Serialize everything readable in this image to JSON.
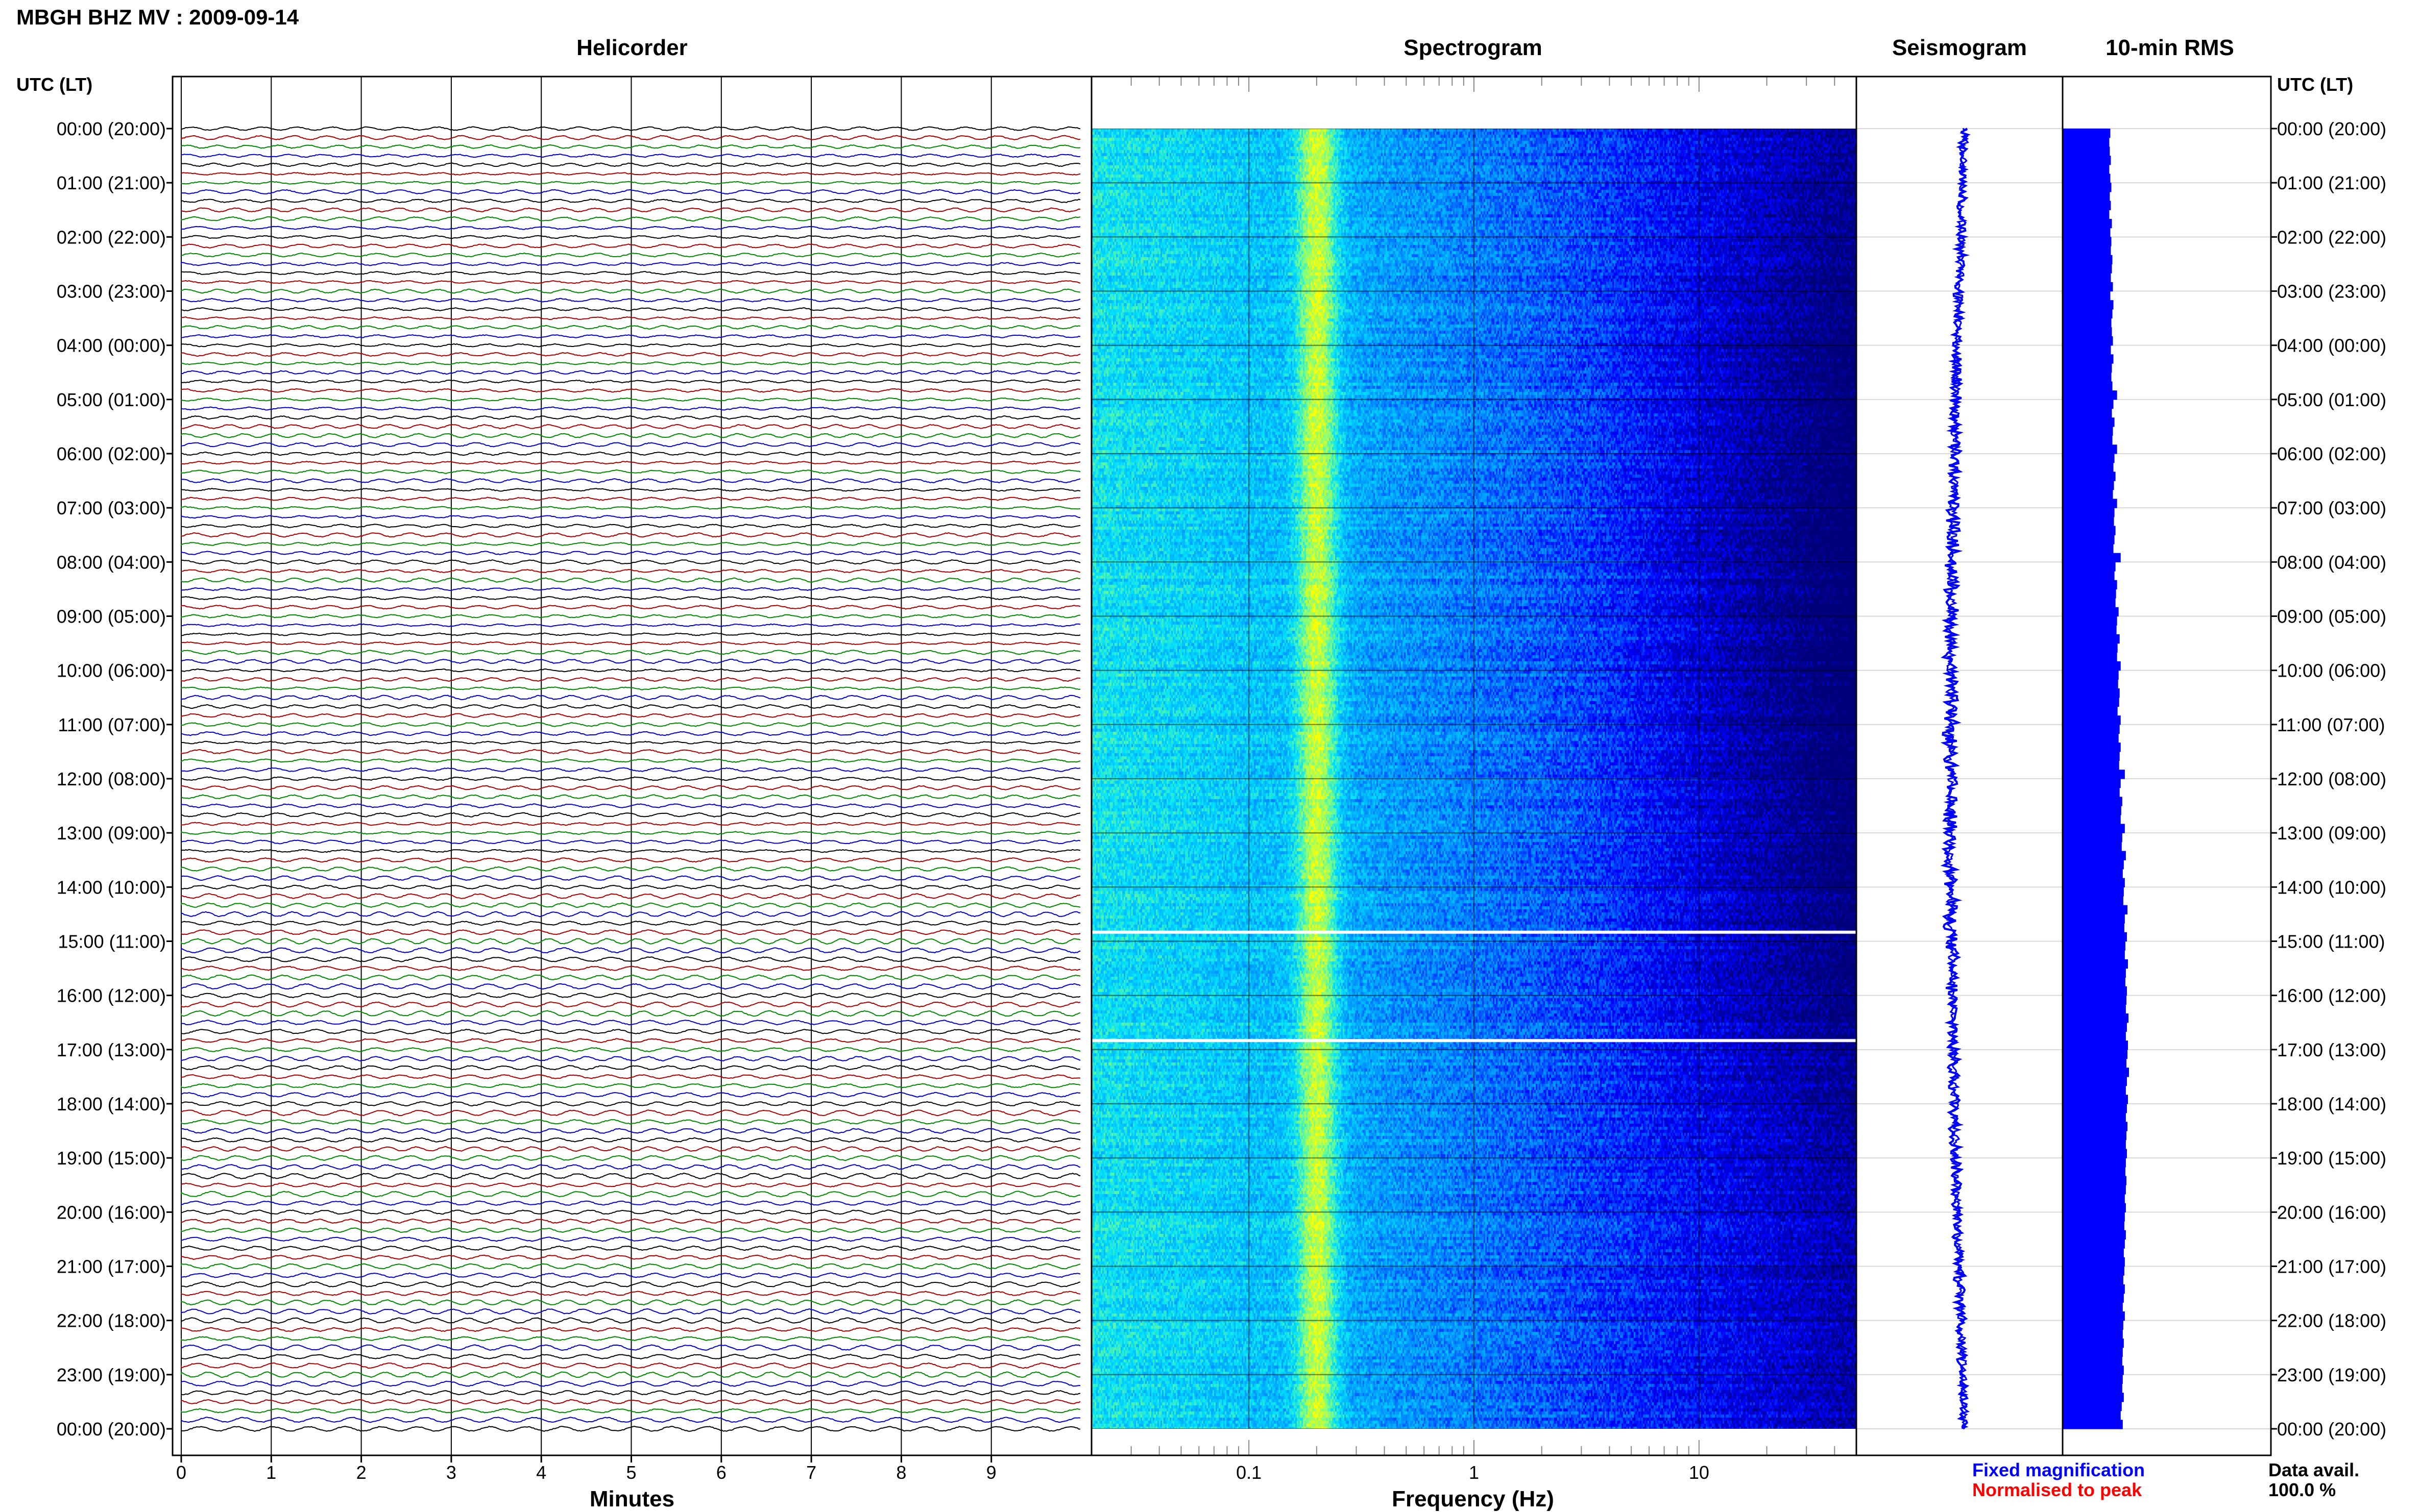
{
  "page": {
    "title": "MBGH BHZ MV : 2009-09-14",
    "utc_label_left": "UTC (LT)",
    "utc_label_right": "UTC (LT)",
    "data_avail_label": "Data avail.",
    "data_avail_value": "100.0 %"
  },
  "colors": {
    "trace_cycle": [
      "#000000",
      "#aa0000",
      "#008800",
      "#0000cc"
    ],
    "seismogram": "#0000ff",
    "rms": "#0000ff",
    "fixed_magnification": "#0000ff",
    "normalised_to_peak": "#ff0000",
    "spectrogram_palette": [
      "#00007a",
      "#0000ff",
      "#0088ff",
      "#00e0ff",
      "#80ff80",
      "#ffff00"
    ]
  },
  "time_axis": {
    "labels": [
      "00:00 (20:00)",
      "01:00 (21:00)",
      "02:00 (22:00)",
      "03:00 (23:00)",
      "04:00 (00:00)",
      "05:00 (01:00)",
      "06:00 (02:00)",
      "07:00 (03:00)",
      "08:00 (04:00)",
      "09:00 (05:00)",
      "10:00 (06:00)",
      "11:00 (07:00)",
      "12:00 (08:00)",
      "13:00 (09:00)",
      "14:00 (10:00)",
      "15:00 (11:00)",
      "16:00 (12:00)",
      "17:00 (13:00)",
      "18:00 (14:00)",
      "19:00 (15:00)",
      "20:00 (16:00)",
      "21:00 (17:00)",
      "22:00 (18:00)",
      "23:00 (19:00)",
      "00:00 (20:00)"
    ]
  },
  "legend": {
    "fixed_magnification": "Fixed magnification",
    "normalised_to_peak": "Normalised to peak"
  },
  "chart_data": [
    {
      "type": "line",
      "title": "Helicorder",
      "xlabel": "Minutes",
      "ylabel": "",
      "x_ticks": [
        "0",
        "1",
        "2",
        "3",
        "4",
        "5",
        "6",
        "7",
        "8",
        "9"
      ],
      "xlim": [
        0,
        10
      ],
      "traces_per_day": 144,
      "minutes_per_trace": 10
    },
    {
      "type": "heatmap",
      "title": "Spectrogram",
      "xlabel": "Frequency (Hz)",
      "x_scale": "log",
      "xlim": [
        0.02,
        50
      ],
      "x_tick_labels": [
        {
          "value": 0.1,
          "label": "0.1"
        },
        {
          "value": 1,
          "label": "1"
        },
        {
          "value": 10,
          "label": "10"
        }
      ],
      "peak_frequency_hz": 0.2,
      "gaps_utc": [
        "14:50",
        "16:50"
      ]
    },
    {
      "type": "line",
      "title": "Seismogram",
      "xlabel": "",
      "ylabel": ""
    },
    {
      "type": "bar",
      "title": "10-min RMS",
      "xlabel": "",
      "ylabel": "",
      "orientation": "horizontal",
      "values": [
        0.92,
        0.9,
        0.91,
        0.93,
        0.9,
        0.92,
        0.94,
        0.91,
        0.93,
        0.9,
        0.95,
        0.92,
        0.94,
        0.93,
        0.96,
        0.95,
        0.93,
        0.97,
        0.92,
        0.98,
        0.96,
        0.94,
        0.95,
        0.97,
        0.93,
        0.98,
        0.95,
        0.94,
        0.96,
        1.05,
        0.98,
        0.95,
        1.0,
        0.97,
        0.96,
        1.05,
        1.0,
        0.98,
        1.02,
        0.99,
        0.97,
        1.05,
        1.0,
        0.99,
        1.02,
        1.0,
        0.98,
        1.12,
        1.02,
        1.0,
        1.05,
        1.03,
        1.02,
        1.08,
        1.05,
        1.04,
        1.1,
        1.06,
        1.05,
        1.12,
        1.08,
        1.07,
        1.1,
        1.09,
        1.06,
        1.12,
        1.1,
        1.08,
        1.12,
        1.1,
        1.09,
        1.2,
        1.12,
        1.1,
        1.15,
        1.13,
        1.12,
        1.2,
        1.15,
        1.14,
        1.22,
        1.18,
        1.16,
        1.2,
        1.18,
        1.17,
        1.25,
        1.2,
        1.19,
        1.24,
        1.21,
        1.2,
        1.26,
        1.22,
        1.21,
        1.24,
        1.23,
        1.22,
        1.27,
        1.24,
        1.22,
        1.26,
        1.25,
        1.23,
        1.28,
        1.24,
        1.22,
        1.26,
        1.24,
        1.22,
        1.25,
        1.23,
        1.22,
        1.24,
        1.22,
        1.21,
        1.23,
        1.22,
        1.2,
        1.22,
        1.2,
        1.19,
        1.22,
        1.2,
        1.18,
        1.2,
        1.19,
        1.17,
        1.2,
        1.18,
        1.16,
        1.2,
        1.17,
        1.16,
        1.18,
        1.16,
        1.15,
        1.18,
        1.16,
        1.15,
        1.18,
        1.14,
        1.12,
        1.16
      ]
    }
  ]
}
